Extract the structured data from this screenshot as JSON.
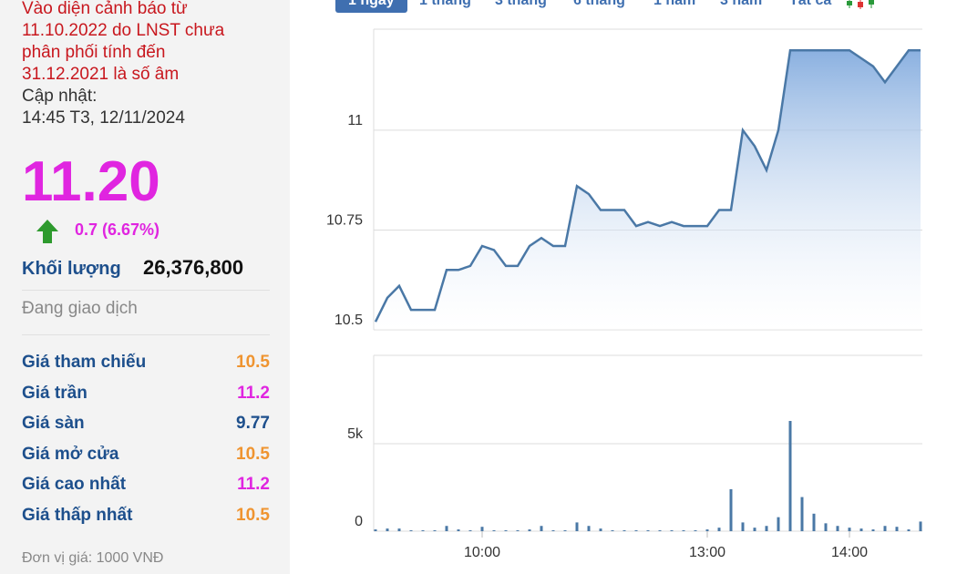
{
  "tabs": [
    {
      "label": "1 ngày",
      "active": true
    },
    {
      "label": "1 tháng",
      "active": false
    },
    {
      "label": "3 tháng",
      "active": false
    },
    {
      "label": "6 tháng",
      "active": false
    },
    {
      "label": "1 năm",
      "active": false
    },
    {
      "label": "3 năm",
      "active": false
    },
    {
      "label": "Tất cả",
      "active": false
    }
  ],
  "warning": "Vào diện cảnh báo từ 11.10.2022 do LNST chưa phân phối tính đến 31.12.2021 là số âm",
  "update_label": "Cập nhật:",
  "update_time": "14:45 T3, 12/11/2024",
  "price": "11.20",
  "change": "0.7 (6.67%)",
  "volume_label": "Khối lượng",
  "volume": "26,376,800",
  "status": "Đang giao dịch",
  "stats": [
    {
      "label": "Giá tham chiếu",
      "value": "10.5",
      "color": "#ef9430"
    },
    {
      "label": "Giá trần",
      "value": "11.2",
      "color": "#e025e0"
    },
    {
      "label": "Giá sàn",
      "value": "9.77",
      "color": "#1d4f8c"
    },
    {
      "label": "Giá mở cửa",
      "value": "10.5",
      "color": "#ef9430"
    },
    {
      "label": "Giá cao nhất",
      "value": "11.2",
      "color": "#e025e0"
    },
    {
      "label": "Giá thấp nhất",
      "value": "10.5",
      "color": "#ef9430"
    }
  ],
  "unit_note": "Đơn vị giá: 1000 VNĐ",
  "chart_data": [
    {
      "type": "area",
      "color": "#4a78a6",
      "values": [
        10.52,
        10.58,
        10.61,
        10.55,
        10.55,
        10.55,
        10.65,
        10.65,
        10.66,
        10.71,
        10.7,
        10.66,
        10.66,
        10.71,
        10.73,
        10.71,
        10.71,
        10.86,
        10.84,
        10.8,
        10.8,
        10.8,
        10.76,
        10.77,
        10.76,
        10.77,
        10.76,
        10.76,
        10.76,
        10.8,
        10.8,
        11.0,
        10.96,
        10.9,
        11.0,
        11.2,
        11.2,
        11.2,
        11.2,
        11.2,
        11.2,
        11.18,
        11.16,
        11.12,
        11.16,
        11.2,
        11.2
      ],
      "ylim": [
        10.5,
        11.253
      ],
      "yticks": [
        10.5,
        10.75,
        11
      ],
      "grid": true
    },
    {
      "type": "bar",
      "color": "#4a78a6",
      "categories": [
        null,
        null,
        null,
        null,
        null,
        null,
        null,
        null,
        null,
        "10:00",
        null,
        null,
        null,
        null,
        null,
        null,
        null,
        null,
        null,
        null,
        null,
        null,
        null,
        null,
        null,
        null,
        null,
        null,
        "13:00",
        null,
        null,
        null,
        null,
        null,
        null,
        null,
        null,
        null,
        null,
        null,
        "14:00",
        null,
        null,
        null,
        null,
        null,
        null
      ],
      "values": [
        100,
        150,
        150,
        50,
        50,
        50,
        300,
        100,
        50,
        250,
        50,
        50,
        50,
        100,
        300,
        50,
        50,
        500,
        300,
        150,
        50,
        50,
        50,
        50,
        50,
        50,
        50,
        50,
        100,
        200,
        2400,
        500,
        200,
        300,
        800,
        6300,
        1950,
        1000,
        450,
        300,
        200,
        150,
        100,
        300,
        250,
        100,
        550
      ],
      "ylim": [
        0,
        10050
      ],
      "yticks": [
        0,
        {
          "value": 5000,
          "label": "5k"
        }
      ],
      "grid": true
    }
  ]
}
